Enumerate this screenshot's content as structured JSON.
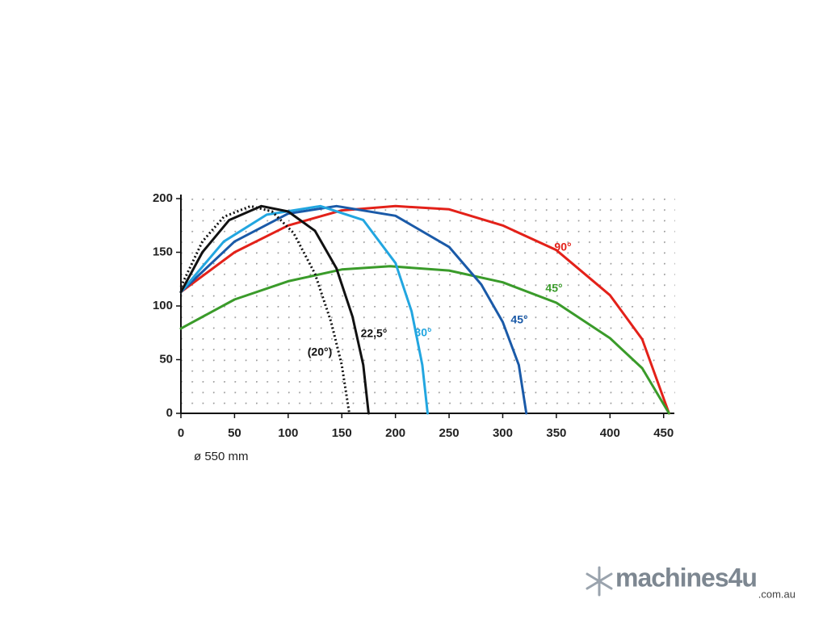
{
  "chart_data": {
    "type": "line",
    "x_label": "ø 550 mm",
    "xlim": [
      0,
      460
    ],
    "ylim": [
      0,
      200
    ],
    "xticks": [
      0,
      50,
      100,
      150,
      200,
      250,
      300,
      350,
      400,
      450
    ],
    "yticks": [
      0,
      50,
      100,
      150,
      200
    ],
    "grid": true,
    "series": [
      {
        "name": "90°",
        "color": "#e32119",
        "style": "solid",
        "x": [
          0,
          50,
          100,
          150,
          200,
          250,
          300,
          350,
          400,
          430,
          455
        ],
        "values": [
          113,
          150,
          175,
          189,
          193,
          190,
          175,
          152,
          110,
          69,
          0
        ]
      },
      {
        "name": "45°",
        "color": "#3a9b2a",
        "style": "solid",
        "x": [
          0,
          50,
          100,
          150,
          195,
          250,
          300,
          350,
          400,
          430,
          455
        ],
        "values": [
          79,
          106,
          123,
          134,
          137,
          133,
          122,
          103,
          70,
          42,
          0
        ]
      },
      {
        "name": "45°",
        "color": "#1a5aa8",
        "style": "solid",
        "x": [
          0,
          50,
          100,
          145,
          200,
          250,
          280,
          300,
          315,
          322
        ],
        "values": [
          113,
          160,
          186,
          193,
          184,
          155,
          120,
          85,
          45,
          0
        ]
      },
      {
        "name": "30°",
        "color": "#22a6e0",
        "style": "solid",
        "x": [
          0,
          40,
          80,
          130,
          170,
          200,
          215,
          225,
          230
        ],
        "values": [
          113,
          160,
          185,
          193,
          180,
          140,
          95,
          45,
          0
        ]
      },
      {
        "name": "22,5°",
        "color": "#111111",
        "style": "solid",
        "x": [
          0,
          20,
          45,
          75,
          100,
          125,
          145,
          160,
          170,
          175
        ],
        "values": [
          113,
          150,
          180,
          193,
          188,
          170,
          135,
          90,
          45,
          0
        ]
      },
      {
        "name": "(20°)",
        "color": "#111111",
        "style": "dotted",
        "x": [
          0,
          20,
          40,
          65,
          85,
          105,
          125,
          140,
          150,
          157
        ],
        "values": [
          118,
          160,
          183,
          193,
          188,
          168,
          130,
          85,
          45,
          0
        ]
      }
    ]
  },
  "watermark": {
    "brand": "machines4u",
    "domain": ".com.au"
  }
}
